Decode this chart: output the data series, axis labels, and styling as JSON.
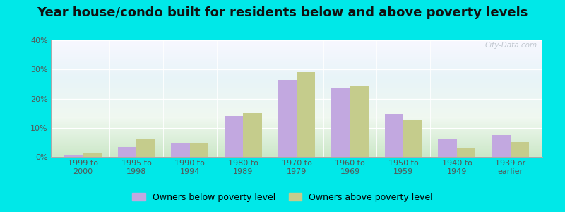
{
  "title": "Year house/condo built for residents below and above poverty levels",
  "categories": [
    "1999 to\n2000",
    "1995 to\n1998",
    "1990 to\n1994",
    "1980 to\n1989",
    "1970 to\n1979",
    "1960 to\n1969",
    "1950 to\n1959",
    "1940 to\n1949",
    "1939 or\nearlier"
  ],
  "below_poverty": [
    0.5,
    3.5,
    4.5,
    14.0,
    26.5,
    23.5,
    14.5,
    6.0,
    7.5
  ],
  "above_poverty": [
    1.5,
    6.0,
    4.5,
    15.0,
    29.0,
    24.5,
    12.5,
    3.0,
    5.0
  ],
  "below_color": "#c2a8e0",
  "above_color": "#c5cc8c",
  "outer_background": "#00e8e8",
  "ylim": [
    0,
    40
  ],
  "yticks": [
    0,
    10,
    20,
    30,
    40
  ],
  "bar_width": 0.35,
  "legend_below_label": "Owners below poverty level",
  "legend_above_label": "Owners above poverty level",
  "title_fontsize": 13,
  "tick_fontsize": 8,
  "legend_fontsize": 9,
  "watermark_text": "City-Data.com"
}
